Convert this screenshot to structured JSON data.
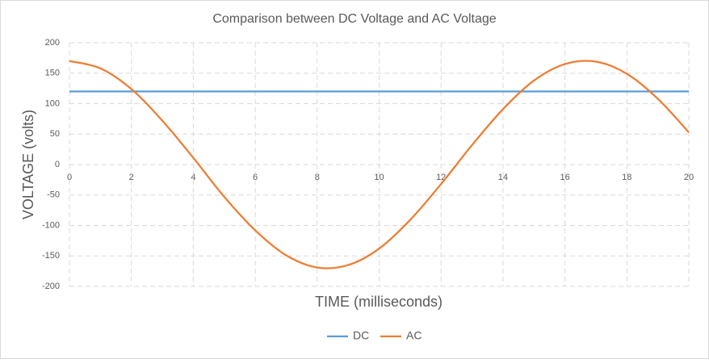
{
  "chart_data": {
    "type": "line",
    "title": "Comparison between DC Voltage and AC Voltage",
    "x_label": "TIME (milliseconds)",
    "y_label": "VOLTAGE (volts)",
    "x": [
      0,
      1,
      2,
      3,
      4,
      5,
      6,
      7,
      8,
      9,
      10,
      11,
      12,
      13,
      14,
      15,
      16,
      17,
      18,
      19,
      20
    ],
    "series": [
      {
        "name": "DC",
        "color": "#5b9bd5",
        "values": [
          120,
          120,
          120,
          120,
          120,
          120,
          120,
          120,
          120,
          120,
          120,
          120,
          120,
          120,
          120,
          120,
          120,
          120,
          120,
          120,
          120
        ]
      },
      {
        "name": "AC",
        "color": "#ed7d31",
        "values": [
          170,
          158,
          124,
          72,
          11,
          -53,
          -108,
          -149,
          -169,
          -165,
          -138,
          -91,
          -32,
          32,
          91,
          138,
          165,
          169,
          149,
          108,
          53
        ]
      }
    ],
    "xlim": [
      0,
      20
    ],
    "xticks": [
      0,
      2,
      4,
      6,
      8,
      10,
      12,
      14,
      16,
      18,
      20
    ],
    "ylim": [
      -200,
      200
    ],
    "yticks": [
      -200,
      -150,
      -100,
      -50,
      0,
      50,
      100,
      150,
      200
    ],
    "grid": true,
    "legend": "bottom",
    "smooth": true
  }
}
